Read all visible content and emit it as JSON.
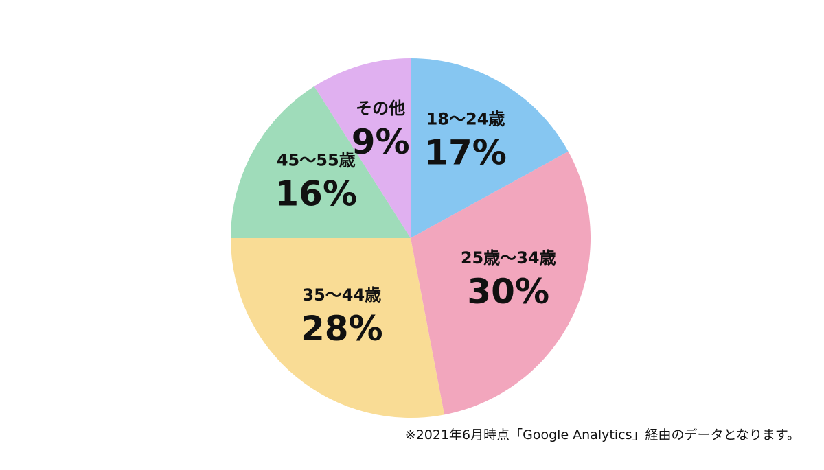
{
  "chart_data": {
    "type": "pie",
    "categories": [
      "18〜24歳",
      "25歳〜34歳",
      "35〜44歳",
      "45〜55歳",
      "その他"
    ],
    "values": [
      17,
      30,
      28,
      16,
      9
    ],
    "value_labels": [
      "17%",
      "30%",
      "28%",
      "16%",
      "9%"
    ],
    "colors": [
      "#86c6f1",
      "#f2a6bd",
      "#f9dc95",
      "#9fdcba",
      "#e0b0f0"
    ],
    "note": "※2021年6月時点「Google Analytics」経由のデータとなります。"
  }
}
